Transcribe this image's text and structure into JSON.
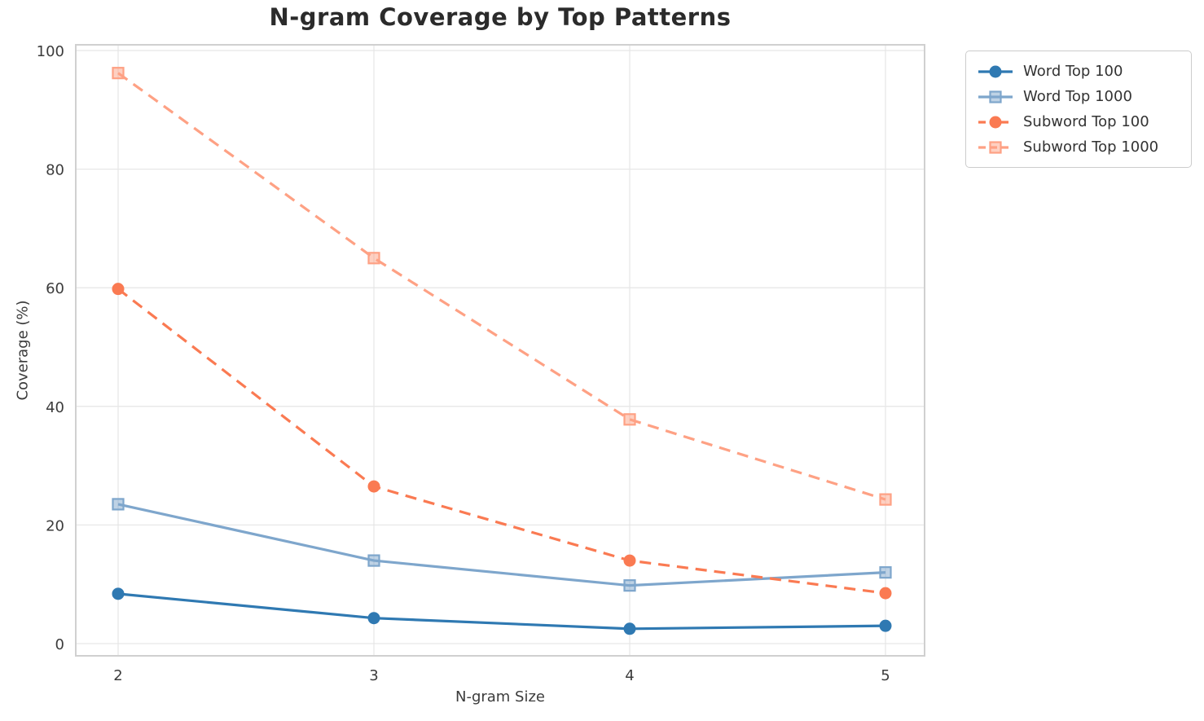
{
  "chart_data": {
    "type": "line",
    "title": "N-gram Coverage by Top Patterns",
    "xlabel": "N-gram Size",
    "ylabel": "Coverage (%)",
    "x": [
      2,
      3,
      4,
      5
    ],
    "xtick_labels": [
      "2",
      "3",
      "4",
      "5"
    ],
    "yticks": [
      0,
      20,
      40,
      60,
      80,
      100
    ],
    "ylim": [
      0,
      100
    ],
    "grid": true,
    "legend_position": "outside-upper-right",
    "series": [
      {
        "name": "Word Top 100",
        "color": "#2F79B2",
        "marker": "circle",
        "dash": "solid",
        "values": [
          8.4,
          4.3,
          2.5,
          3.0
        ]
      },
      {
        "name": "Word Top 1000",
        "color": "#7EA6CC",
        "marker": "square",
        "dash": "solid",
        "values": [
          23.5,
          14.0,
          9.8,
          12.0
        ]
      },
      {
        "name": "Subword Top 100",
        "color": "#FA7A52",
        "marker": "circle",
        "dash": "dashed",
        "values": [
          59.8,
          26.5,
          14.0,
          8.5
        ]
      },
      {
        "name": "Subword Top 1000",
        "color": "#FEA184",
        "marker": "square",
        "dash": "dashed",
        "values": [
          96.2,
          65.0,
          37.8,
          24.3
        ]
      }
    ],
    "style": {
      "grid_color": "#e7e7e7",
      "spine_color": "#d0d0d0",
      "text_color": "#3c3c3c",
      "background": "#ffffff"
    }
  }
}
